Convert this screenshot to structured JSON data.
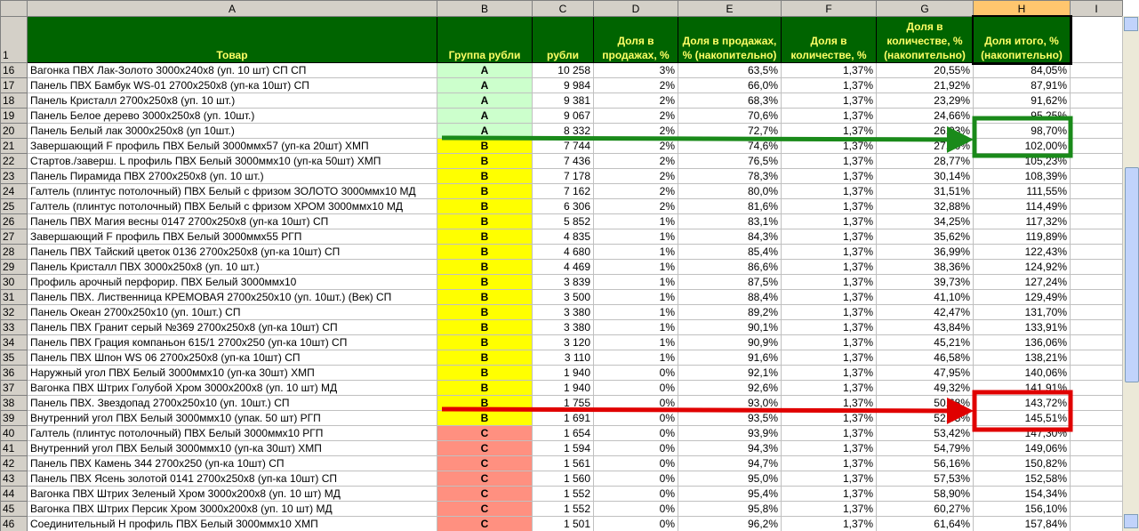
{
  "column_letters": [
    "A",
    "B",
    "C",
    "D",
    "E",
    "F",
    "G",
    "H",
    "I"
  ],
  "header": {
    "row_number": "1",
    "cells": [
      "Товар",
      "Группа рубли",
      "рубли",
      "Доля в продажах, %",
      "Доля в продажах, % (накопительно)",
      "Доля в количестве, %",
      "Доля в количестве, % (накопительно)",
      "Доля итого, % (накопительно)",
      ""
    ]
  },
  "group_colors": {
    "A": "#ccffcc",
    "B": "#ffff00",
    "C": "#ff9080"
  },
  "rows": [
    [
      "16",
      "Вагонка ПВХ Лак-Золото 3000х240х8 (уп. 10 шт) СП  СП",
      "A",
      "10 258",
      "3%",
      "63,5%",
      "1,37%",
      "20,55%",
      "84,05%"
    ],
    [
      "17",
      "Панель ПВХ Бамбук WS-01 2700х250х8 (уп-ка 10шт) СП",
      "A",
      "9 984",
      "2%",
      "66,0%",
      "1,37%",
      "21,92%",
      "87,91%"
    ],
    [
      "18",
      "Панель Кристалл 2700х250х8 (уп. 10 шт.)",
      "A",
      "9 381",
      "2%",
      "68,3%",
      "1,37%",
      "23,29%",
      "91,62%"
    ],
    [
      "19",
      "Панель Белое дерево 3000х250х8 (уп. 10шт.)",
      "A",
      "9 067",
      "2%",
      "70,6%",
      "1,37%",
      "24,66%",
      "95,25%"
    ],
    [
      "20",
      "Панель Белый лак 3000х250х8 (уп 10шт.)",
      "A",
      "8 332",
      "2%",
      "72,7%",
      "1,37%",
      "26,03%",
      "98,70%"
    ],
    [
      "21",
      "Завершающий F профиль ПВХ Белый 3000ммх57 (уп-ка 20шт) ХМП",
      "B",
      "7 744",
      "2%",
      "74,6%",
      "1,37%",
      "27,40%",
      "102,00%"
    ],
    [
      "22",
      "Стартов./заверш. L профиль ПВХ Белый 3000ммх10 (уп-ка 50шт) ХМП",
      "B",
      "7 436",
      "2%",
      "76,5%",
      "1,37%",
      "28,77%",
      "105,23%"
    ],
    [
      "23",
      "Панель Пирамида ПВХ 2700х250х8 (уп. 10 шт.)",
      "B",
      "7 178",
      "2%",
      "78,3%",
      "1,37%",
      "30,14%",
      "108,39%"
    ],
    [
      "24",
      "Галтель (плинтус потолочный) ПВХ Белый с фризом ЗОЛОТО 3000ммх10 МД",
      "B",
      "7 162",
      "2%",
      "80,0%",
      "1,37%",
      "31,51%",
      "111,55%"
    ],
    [
      "25",
      "Галтель (плинтус потолочный) ПВХ Белый с фризом ХРОМ 3000ммх10 МД",
      "B",
      "6 306",
      "2%",
      "81,6%",
      "1,37%",
      "32,88%",
      "114,49%"
    ],
    [
      "26",
      "Панель ПВХ Магия весны 0147 2700х250х8 (уп-ка 10шт) СП",
      "B",
      "5 852",
      "1%",
      "83,1%",
      "1,37%",
      "34,25%",
      "117,32%"
    ],
    [
      "27",
      "Завершающий F профиль ПВХ Белый 3000ммх55 РГП",
      "B",
      "4 835",
      "1%",
      "84,3%",
      "1,37%",
      "35,62%",
      "119,89%"
    ],
    [
      "28",
      "Панель ПВХ Тайский цветок 0136 2700х250х8 (уп-ка 10шт) СП",
      "B",
      "4 680",
      "1%",
      "85,4%",
      "1,37%",
      "36,99%",
      "122,43%"
    ],
    [
      "29",
      "Панель Кристалл ПВХ 3000х250х8 (уп. 10 шт.)",
      "B",
      "4 469",
      "1%",
      "86,6%",
      "1,37%",
      "38,36%",
      "124,92%"
    ],
    [
      "30",
      "Профиль арочный перфорир. ПВХ Белый 3000ммх10",
      "B",
      "3 839",
      "1%",
      "87,5%",
      "1,37%",
      "39,73%",
      "127,24%"
    ],
    [
      "31",
      "Панель ПВХ. Лиственница КРЕМОВАЯ   2700х250х10 (уп. 10шт.) (Век) СП",
      "B",
      "3 500",
      "1%",
      "88,4%",
      "1,37%",
      "41,10%",
      "129,49%"
    ],
    [
      "32",
      "Панель Океан 2700х250х10 (уп. 10шт.) СП",
      "B",
      "3 380",
      "1%",
      "89,2%",
      "1,37%",
      "42,47%",
      "131,70%"
    ],
    [
      "33",
      "Панель ПВХ Гранит серый №369 2700х250х8 (уп-ка 10шт) СП",
      "B",
      "3 380",
      "1%",
      "90,1%",
      "1,37%",
      "43,84%",
      "133,91%"
    ],
    [
      "34",
      "Панель ПВХ Грация компаньон 615/1 2700х250 (уп-ка 10шт) СП",
      "B",
      "3 120",
      "1%",
      "90,9%",
      "1,37%",
      "45,21%",
      "136,06%"
    ],
    [
      "35",
      "Панель ПВХ Шпон WS 06 2700х250х8 (уп-ка 10шт) СП",
      "B",
      "3 110",
      "1%",
      "91,6%",
      "1,37%",
      "46,58%",
      "138,21%"
    ],
    [
      "36",
      "Наружный угол ПВХ Белый 3000ммх10 (уп-ка 30шт) ХМП",
      "B",
      "1 940",
      "0%",
      "92,1%",
      "1,37%",
      "47,95%",
      "140,06%"
    ],
    [
      "37",
      "Вагонка ПВХ Штрих Голубой Хром 3000х200х8 (уп. 10 шт) МД",
      "B",
      "1 940",
      "0%",
      "92,6%",
      "1,37%",
      "49,32%",
      "141,91%"
    ],
    [
      "38",
      "Панель ПВХ. Звездопад 2700х250х10 (уп. 10шт.) СП",
      "B",
      "1 755",
      "0%",
      "93,0%",
      "1,37%",
      "50,68%",
      "143,72%"
    ],
    [
      "39",
      "Внутренний угол ПВХ Белый 3000ммх10 (упак. 50 шт) РГП",
      "B",
      "1 691",
      "0%",
      "93,5%",
      "1,37%",
      "52,05%",
      "145,51%"
    ],
    [
      "40",
      "Галтель (плинтус потолочный) ПВХ Белый 3000ммх10 РГП",
      "C",
      "1 654",
      "0%",
      "93,9%",
      "1,37%",
      "53,42%",
      "147,30%"
    ],
    [
      "41",
      "Внутренний угол ПВХ Белый 3000ммх10 (уп-ка 30шт) ХМП",
      "C",
      "1 594",
      "0%",
      "94,3%",
      "1,37%",
      "54,79%",
      "149,06%"
    ],
    [
      "42",
      "Панель ПВХ Камень 344 2700х250 (уп-ка 10шт) СП",
      "C",
      "1 561",
      "0%",
      "94,7%",
      "1,37%",
      "56,16%",
      "150,82%"
    ],
    [
      "43",
      "Панель ПВХ Ясень золотой 0141 2700х250х8 (уп-ка 10шт) СП",
      "C",
      "1 560",
      "0%",
      "95,0%",
      "1,37%",
      "57,53%",
      "152,58%"
    ],
    [
      "44",
      "Вагонка ПВХ Штрих Зеленый Хром 3000х200х8 (уп. 10 шт) МД",
      "C",
      "1 552",
      "0%",
      "95,4%",
      "1,37%",
      "58,90%",
      "154,34%"
    ],
    [
      "45",
      "Вагонка ПВХ Штрих Персик Хром 3000х200х8 (уп. 10 шт) МД",
      "C",
      "1 552",
      "0%",
      "95,8%",
      "1,37%",
      "60,27%",
      "156,10%"
    ],
    [
      "46",
      "Соединительный Н профиль ПВХ Белый 3000ммх10 ХМП",
      "C",
      "1 501",
      "0%",
      "96,2%",
      "1,37%",
      "61,64%",
      "157,84%"
    ]
  ]
}
